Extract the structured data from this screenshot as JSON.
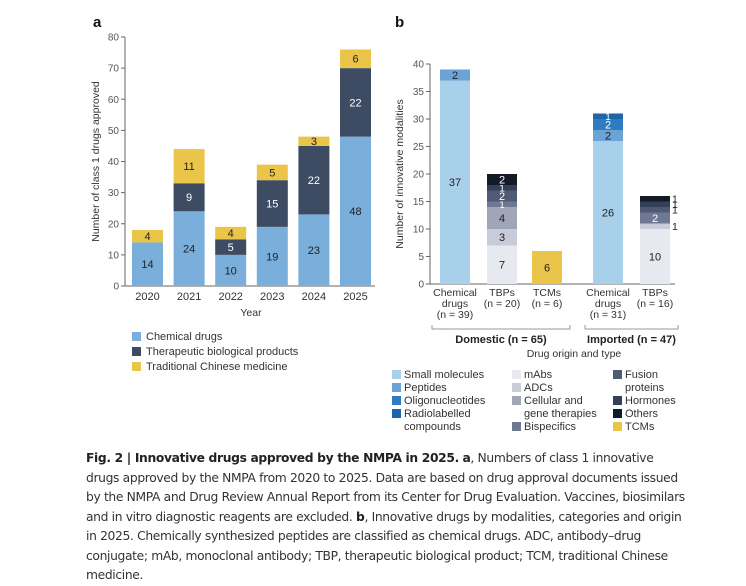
{
  "chart_data": [
    {
      "panel": "a",
      "type": "bar",
      "stacked": true,
      "title": "",
      "xlabel": "Year",
      "ylabel": "Number of class 1 drugs approved",
      "ylim": [
        0,
        80
      ],
      "yticks": [
        0,
        10,
        20,
        30,
        40,
        50,
        60,
        70,
        80
      ],
      "categories": [
        "2020",
        "2021",
        "2022",
        "2023",
        "2024",
        "2025"
      ],
      "series": [
        {
          "name": "Chemical drugs",
          "color": "#7aaedb",
          "label_color": "#222222",
          "values": [
            14,
            24,
            10,
            19,
            23,
            48
          ]
        },
        {
          "name": "Therapeutic biological products",
          "color": "#3d4b63",
          "label_color": "#ffffff",
          "values": [
            0,
            9,
            5,
            15,
            22,
            22
          ]
        },
        {
          "name": "Traditional Chinese medicine",
          "color": "#ebc54a",
          "label_color": "#222222",
          "values": [
            4,
            11,
            4,
            5,
            3,
            6
          ]
        }
      ],
      "legend_position": "bottom-left"
    },
    {
      "panel": "b",
      "type": "bar",
      "stacked": true,
      "xlabel": "Drug origin and type",
      "ylabel": "Number of innovative modalities",
      "ylim": [
        0,
        40
      ],
      "yticks": [
        0,
        5,
        10,
        15,
        20,
        25,
        30,
        35,
        40
      ],
      "categories": [
        {
          "lines": [
            "Chemical",
            "drugs",
            "(n = 39)"
          ],
          "group": "Domestic"
        },
        {
          "lines": [
            "TBPs",
            "(n = 20)"
          ],
          "group": "Domestic"
        },
        {
          "lines": [
            "TCMs",
            "(n = 6)"
          ],
          "group": "Domestic"
        },
        {
          "lines": [
            "Chemical",
            "drugs",
            "(n = 31)"
          ],
          "group": "Imported"
        },
        {
          "lines": [
            "TBPs",
            "(n = 16)"
          ],
          "group": "Imported"
        }
      ],
      "groups": [
        {
          "name": "Domestic (n = 65)",
          "categories": [
            0,
            1,
            2
          ]
        },
        {
          "name": "Imported (n = 47)",
          "categories": [
            3,
            4
          ]
        }
      ],
      "series": [
        {
          "name": "Small molecules",
          "color": "#a9d0ea",
          "label_color": "#222222",
          "values": [
            37,
            0,
            0,
            26,
            0
          ]
        },
        {
          "name": "Peptides",
          "color": "#6aa3d6",
          "label_color": "#222222",
          "values": [
            2,
            0,
            0,
            2,
            0
          ]
        },
        {
          "name": "Oligonucleotides",
          "color": "#2f7cc0",
          "label_color": "#ffffff",
          "values": [
            0,
            0,
            0,
            2,
            0
          ]
        },
        {
          "name": "Radiolabelled compounds",
          "color": "#1d64a8",
          "label_color": "#ffffff",
          "values": [
            0,
            0,
            0,
            1,
            0
          ]
        },
        {
          "name": "mAbs",
          "color": "#e6e9ef",
          "label_color": "#222222",
          "values": [
            0,
            7,
            0,
            0,
            10
          ]
        },
        {
          "name": "ADCs",
          "color": "#c9ccd8",
          "label_color": "#222222",
          "values": [
            0,
            3,
            0,
            0,
            1
          ]
        },
        {
          "name": "Cellular and gene therapies",
          "color": "#a0a6b8",
          "label_color": "#222222",
          "values": [
            0,
            4,
            0,
            0,
            0
          ]
        },
        {
          "name": "Bispecifics",
          "color": "#6e7890",
          "label_color": "#ffffff",
          "values": [
            0,
            1,
            0,
            0,
            2
          ]
        },
        {
          "name": "Fusion proteins",
          "color": "#4f5b75",
          "label_color": "#ffffff",
          "values": [
            0,
            2,
            0,
            0,
            1
          ]
        },
        {
          "name": "Hormones",
          "color": "#344058",
          "label_color": "#ffffff",
          "values": [
            0,
            1,
            0,
            0,
            1
          ]
        },
        {
          "name": "Others",
          "color": "#141b28",
          "label_color": "#ffffff",
          "values": [
            0,
            2,
            0,
            0,
            1
          ]
        },
        {
          "name": "TCMs",
          "color": "#ebc54a",
          "label_color": "#222222",
          "values": [
            0,
            0,
            6,
            0,
            0
          ]
        }
      ],
      "outside_labels": {
        "category": 4,
        "series": [
          "ADCs",
          "Fusion proteins",
          "Hormones",
          "Others"
        ]
      },
      "legend_position": "bottom",
      "legend_columns": [
        [
          "Small molecules",
          "Peptides",
          "Oligonucleotides",
          "Radiolabelled compounds"
        ],
        [
          "mAbs",
          "ADCs",
          "Cellular and gene therapies",
          "Bispecifics"
        ],
        [
          "Fusion proteins",
          "Hormones",
          "Others",
          "TCMs"
        ]
      ]
    }
  ],
  "panels": {
    "a": "a",
    "b": "b"
  },
  "caption": {
    "fig_label": "Fig. 2 | Innovative drugs approved by the NMPA in 2025.",
    "a_label": "a",
    "a_text": ", Numbers of class 1 innovative drugs approved by the NMPA from 2020 to 2025. Data are based on drug approval documents issued by the NMPA and Drug Review Annual Report from its Center for Drug Evaluation. Vaccines, biosimilars and in vitro diagnostic reagents are excluded. ",
    "b_label": "b",
    "b_text": ", Innovative drugs by modalities, categories and origin in 2025. Chemically synthesized peptides are classified as chemical drugs. ADC, antibody–drug conjugate; mAb, monoclonal antibody; TBP, therapeutic biological product; TCM, traditional Chinese medicine."
  }
}
